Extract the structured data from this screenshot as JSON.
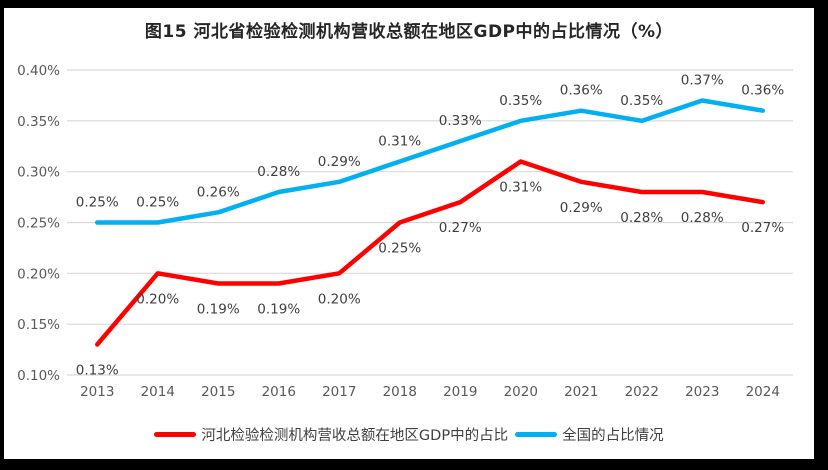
{
  "chart_data": {
    "type": "line",
    "title": "图15 河北省检验检测机构营收总额在地区GDP中的占比情况（%）",
    "categories": [
      "2013",
      "2014",
      "2015",
      "2016",
      "2017",
      "2018",
      "2019",
      "2020",
      "2021",
      "2022",
      "2023",
      "2024"
    ],
    "series": [
      {
        "name": "河北检验检测机构营收总额在地区GDP中的占比",
        "color": "#FF0000",
        "values": [
          0.13,
          0.2,
          0.19,
          0.19,
          0.2,
          0.25,
          0.27,
          0.31,
          0.29,
          0.28,
          0.28,
          0.27
        ],
        "labels": [
          "0.13%",
          "0.20%",
          "0.19%",
          "0.19%",
          "0.20%",
          "0.25%",
          "0.27%",
          "0.31%",
          "0.29%",
          "0.28%",
          "0.28%",
          "0.27%"
        ],
        "label_position": "below"
      },
      {
        "name": "全国的占比情况",
        "color": "#00B0F0",
        "values": [
          0.25,
          0.25,
          0.26,
          0.28,
          0.29,
          0.31,
          0.33,
          0.35,
          0.36,
          0.35,
          0.37,
          0.36
        ],
        "labels": [
          "0.25%",
          "0.25%",
          "0.26%",
          "0.28%",
          "0.29%",
          "0.31%",
          "0.33%",
          "0.35%",
          "0.36%",
          "0.35%",
          "0.37%",
          "0.36%"
        ],
        "label_position": "above"
      }
    ],
    "y_axis": {
      "ticks": [
        "0.40%",
        "0.35%",
        "0.30%",
        "0.25%",
        "0.20%",
        "0.15%",
        "0.10%"
      ],
      "min": 0.1,
      "max": 0.4,
      "step": 0.05
    },
    "grid": true,
    "legend_position": "bottom",
    "colors": {
      "gridline": "#D9D9D9",
      "tick_label": "#595959",
      "data_label": "#404040",
      "title": "#262626",
      "background": "#FFFFFF",
      "frame_border": "#000000"
    }
  }
}
